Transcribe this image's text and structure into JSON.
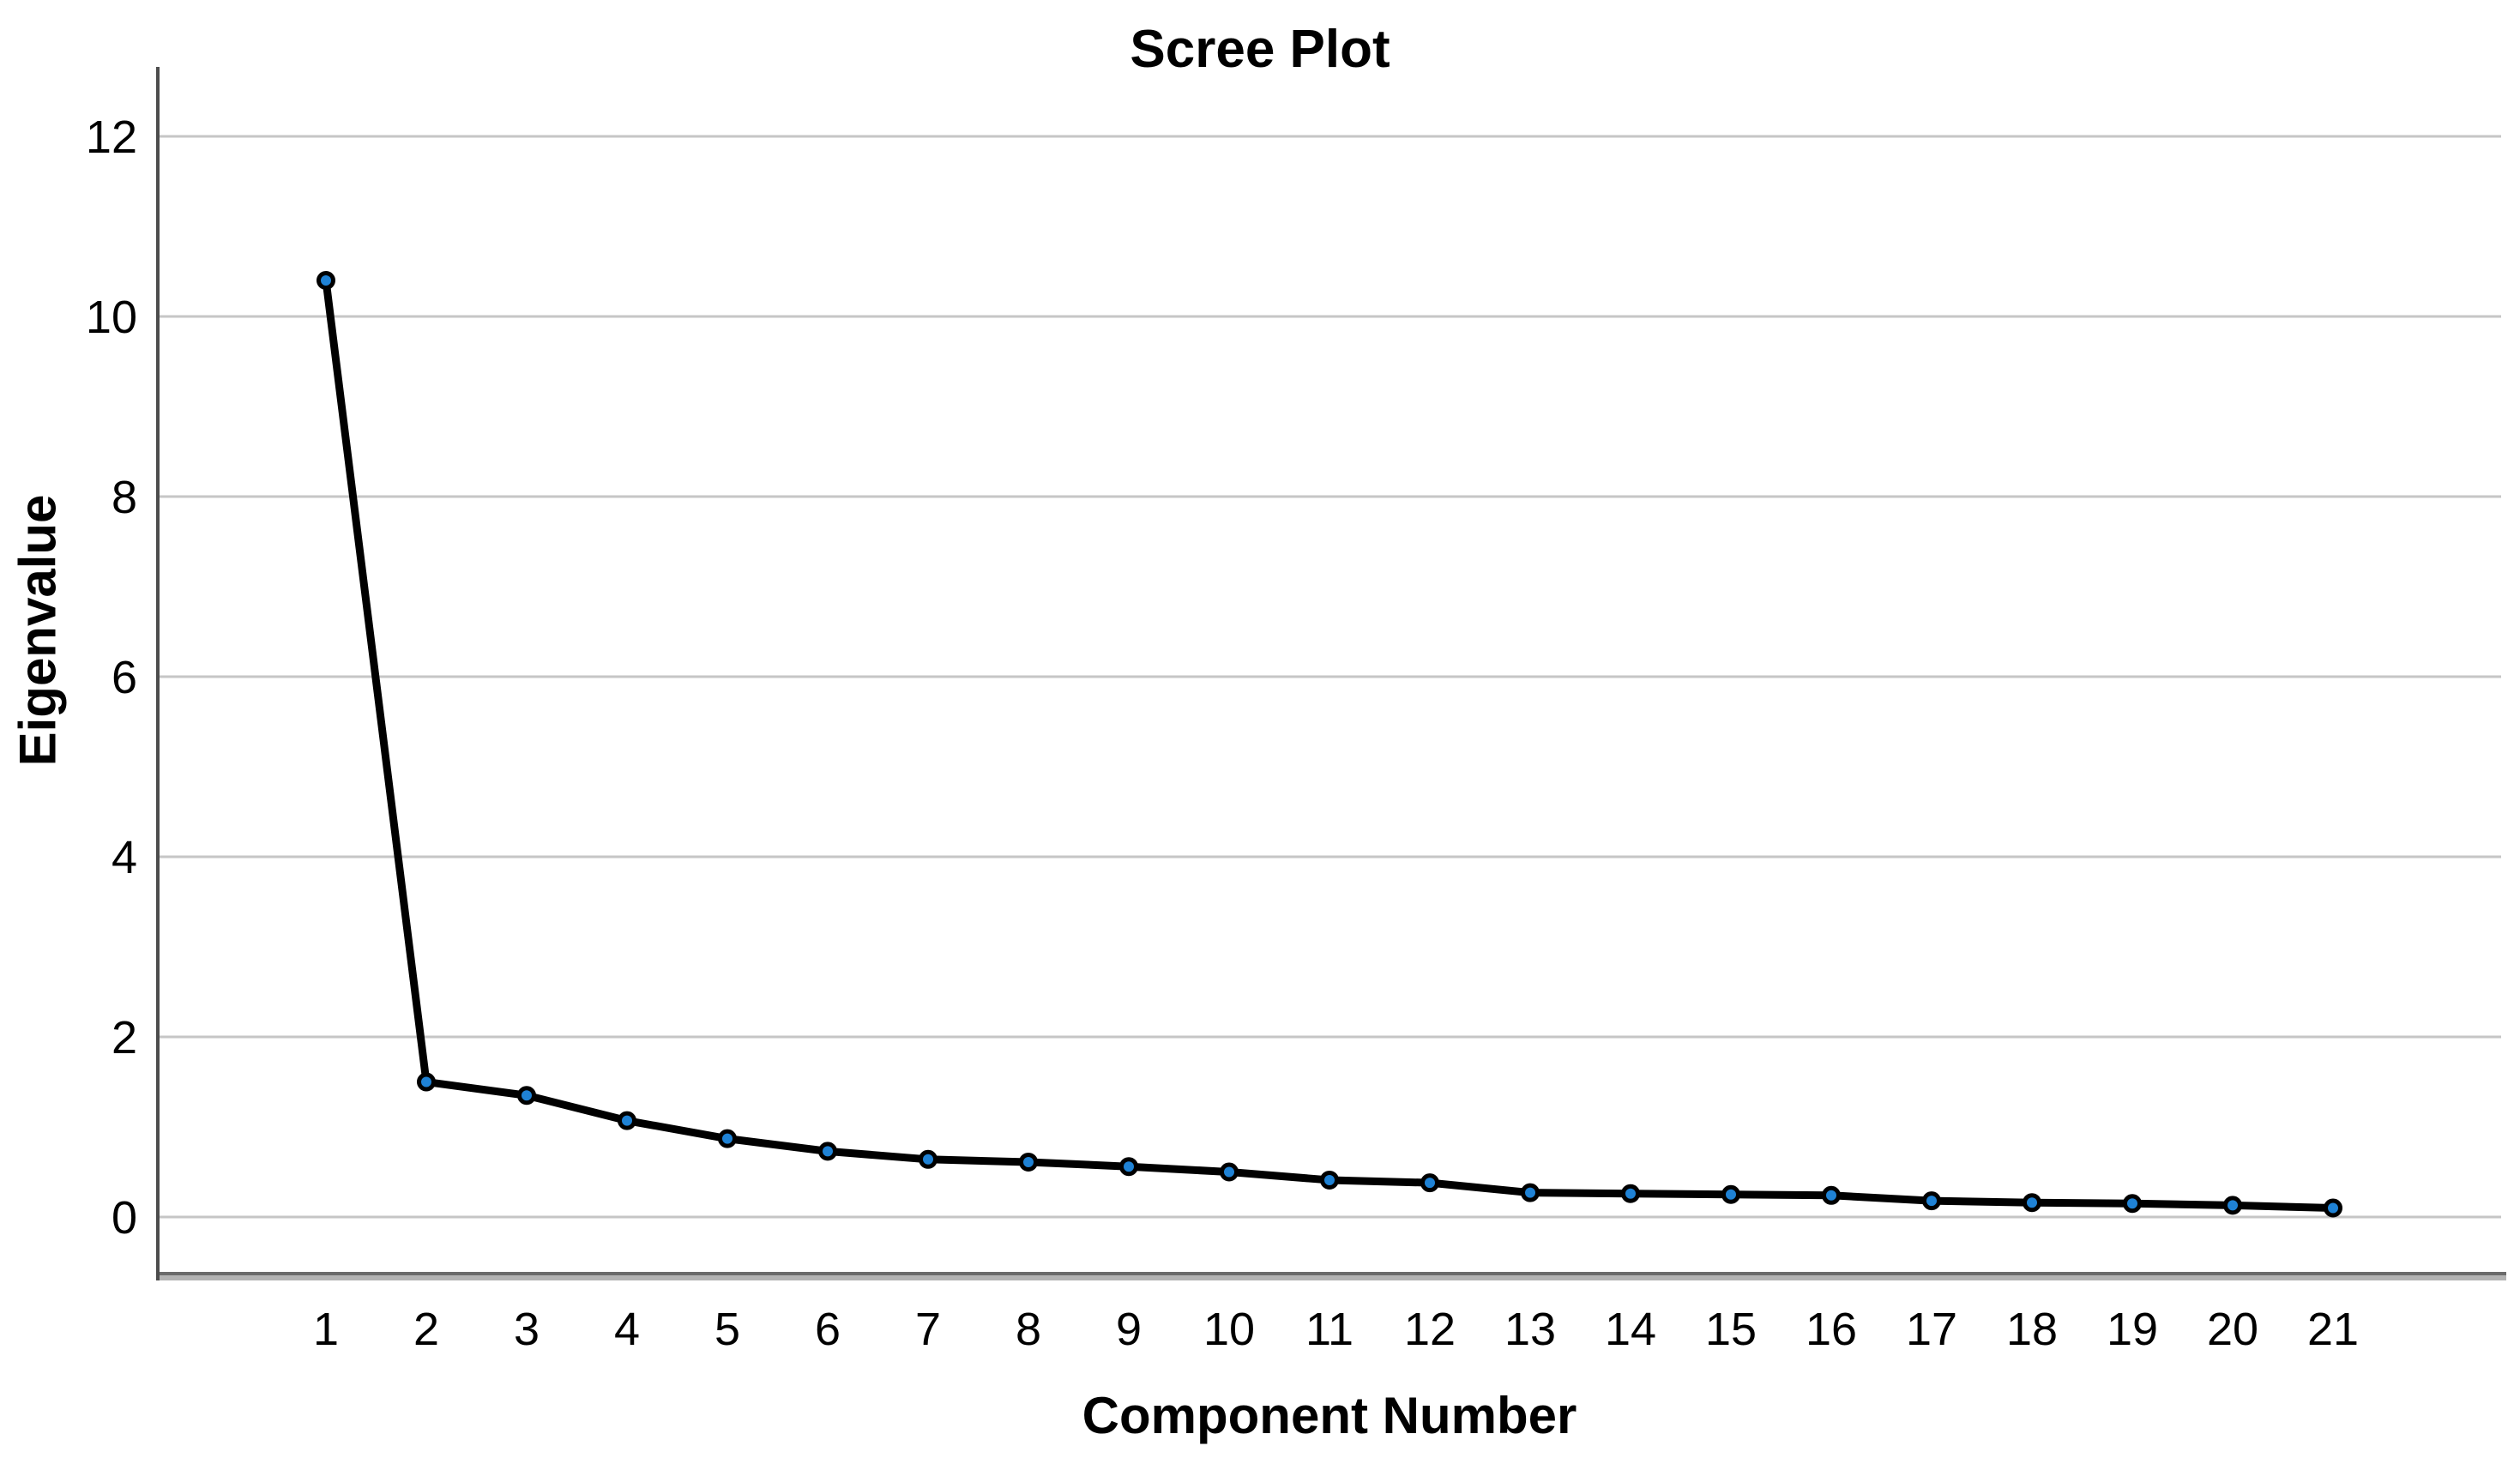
{
  "chart": {
    "title": "Scree Plot",
    "x_axis_title": "Component Number",
    "y_axis_title": "Eigenvalue"
  },
  "chart_data": {
    "type": "line",
    "title": "Scree Plot",
    "xlabel": "Component Number",
    "ylabel": "Eigenvalue",
    "x": [
      1,
      2,
      3,
      4,
      5,
      6,
      7,
      8,
      9,
      10,
      11,
      12,
      13,
      14,
      15,
      16,
      17,
      18,
      19,
      20,
      21
    ],
    "y": [
      10.4,
      1.5,
      1.35,
      1.07,
      0.87,
      0.73,
      0.64,
      0.61,
      0.56,
      0.5,
      0.41,
      0.38,
      0.27,
      0.26,
      0.25,
      0.24,
      0.18,
      0.16,
      0.15,
      0.13,
      0.1
    ],
    "x_ticks": [
      1,
      2,
      3,
      4,
      5,
      6,
      7,
      8,
      9,
      10,
      11,
      12,
      13,
      14,
      15,
      16,
      17,
      18,
      19,
      20,
      21
    ],
    "y_ticks": [
      0,
      2,
      4,
      6,
      8,
      10,
      12
    ],
    "xlim": [
      0,
      22
    ],
    "ylim": [
      -0.6,
      12.8
    ],
    "grid": "horizontal-only",
    "legend": "none",
    "series_name": "Eigenvalue",
    "marker_shape": "circle",
    "colors": {
      "line": "#000000",
      "marker_fill": "#1f82d5",
      "marker_stroke": "#000000",
      "gridline": "#c6c6c6",
      "y_axis_line": "#4d4d4d",
      "x_axis_band_top": "#6b6b6b",
      "x_axis_band": "#b3b3b3",
      "text": "#000000",
      "background": "#ffffff"
    }
  }
}
